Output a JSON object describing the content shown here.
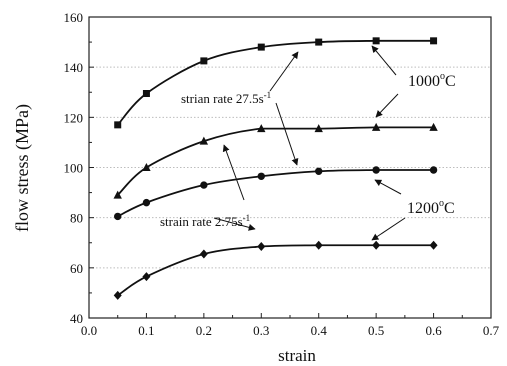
{
  "chart_data": {
    "type": "line",
    "xlabel": "strain",
    "ylabel": "flow stress (MPa)",
    "xlim": [
      0.0,
      0.7
    ],
    "ylim": [
      40,
      160
    ],
    "xticks": [
      "0.0",
      "0.1",
      "0.2",
      "0.3",
      "0.4",
      "0.5",
      "0.6",
      "0.7"
    ],
    "yticks": [
      "40",
      "60",
      "80",
      "100",
      "120",
      "140",
      "160"
    ],
    "grid": true,
    "series": [
      {
        "marker": "square",
        "x": [
          0.05,
          0.1,
          0.2,
          0.3,
          0.4,
          0.5,
          0.6
        ],
        "values": [
          117,
          129.5,
          142.5,
          148,
          150,
          150.5,
          150.5
        ]
      },
      {
        "marker": "triangle",
        "x": [
          0.05,
          0.1,
          0.2,
          0.3,
          0.4,
          0.5,
          0.6
        ],
        "values": [
          89,
          100,
          110.5,
          115.5,
          115.5,
          116,
          116
        ]
      },
      {
        "marker": "circle",
        "x": [
          0.05,
          0.1,
          0.2,
          0.3,
          0.4,
          0.5,
          0.6
        ],
        "values": [
          80.5,
          86,
          93,
          96.5,
          98.5,
          99,
          99
        ]
      },
      {
        "marker": "diamond",
        "x": [
          0.05,
          0.1,
          0.2,
          0.3,
          0.4,
          0.5,
          0.6
        ],
        "values": [
          49,
          56.5,
          65.5,
          68.5,
          69,
          69,
          69
        ]
      }
    ],
    "annotations": [
      {
        "text": "strian rate 27.5s",
        "sup": "-1"
      },
      {
        "text": "strain rate 2.75s",
        "sup": "-1"
      },
      {
        "text": "1000",
        "sup": "o",
        "suffix": "C"
      },
      {
        "text": "1200",
        "sup": "o",
        "suffix": "C"
      }
    ]
  }
}
